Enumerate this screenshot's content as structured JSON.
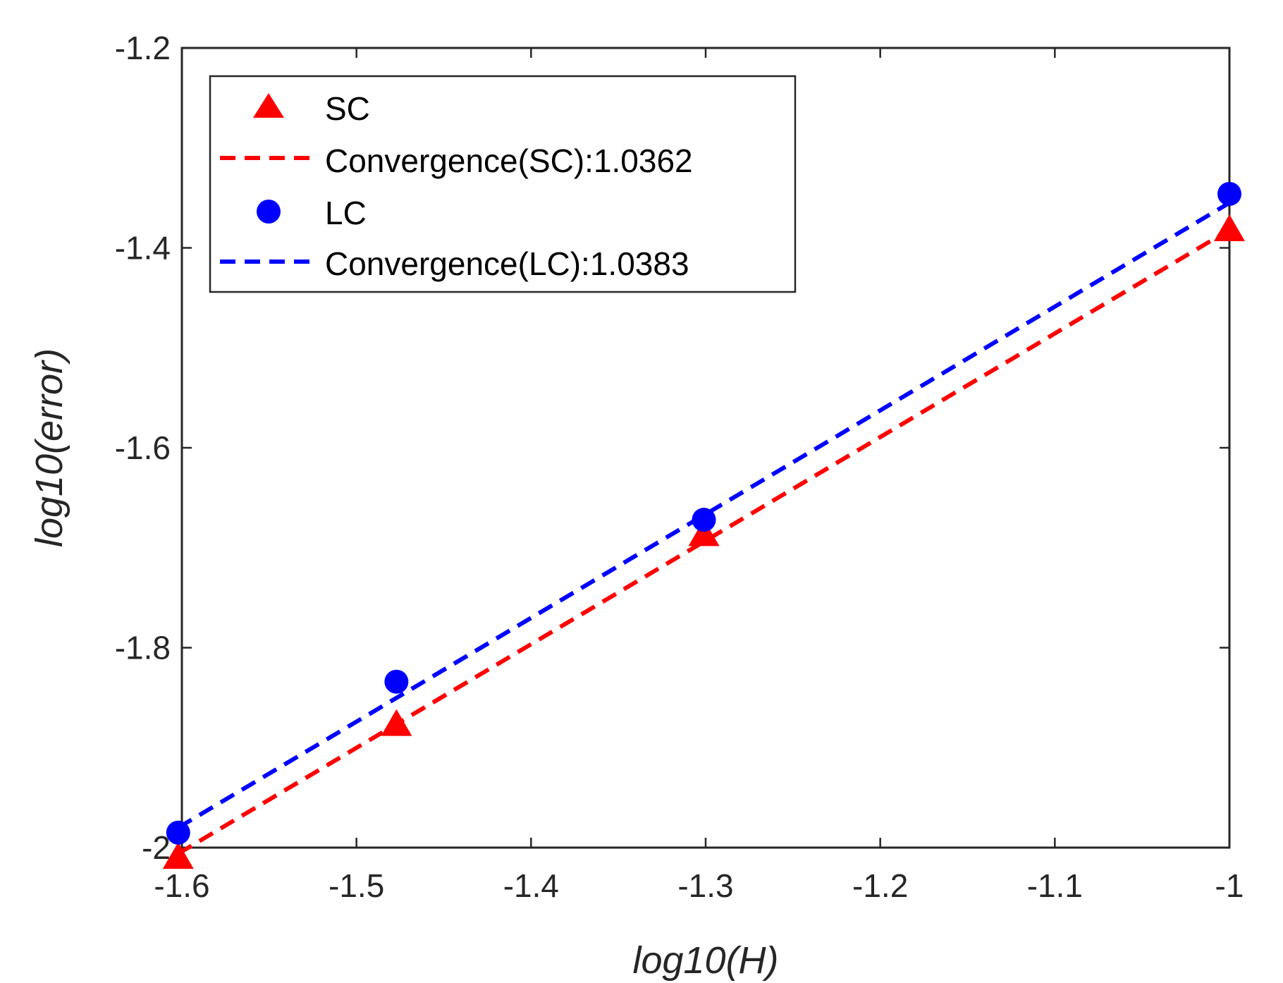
{
  "chart_data": {
    "type": "scatter",
    "xlabel": "log10(H)",
    "ylabel": "log10(error)",
    "xlim": [
      -1.6,
      -1.0
    ],
    "ylim": [
      -2.0,
      -1.2
    ],
    "xticks": [
      -1.6,
      -1.5,
      -1.4,
      -1.3,
      -1.2,
      -1.1,
      -1.0
    ],
    "xtick_labels": [
      "-1.6",
      "-1.5",
      "-1.4",
      "-1.3",
      "-1.2",
      "-1.1",
      "-1"
    ],
    "yticks": [
      -2.0,
      -1.8,
      -1.6,
      -1.4,
      -1.2
    ],
    "ytick_labels": [
      "-2",
      "-1.8",
      "-1.6",
      "-1.4",
      "-1.2"
    ],
    "grid": false,
    "legend_position": "top-left",
    "series": [
      {
        "name": "SC",
        "kind": "markers",
        "marker": "triangle",
        "color": "#ff0000",
        "x": [
          -1.6021,
          -1.4771,
          -1.301,
          -1.0
        ],
        "y": [
          -2.01,
          -1.877,
          -1.687,
          -1.382
        ]
      },
      {
        "name": "Convergence(SC):1.0362",
        "kind": "fit-line",
        "color": "#ff0000",
        "x": [
          -1.6021,
          -1.0
        ],
        "y": [
          -2.006,
          -1.382
        ]
      },
      {
        "name": "LC",
        "kind": "markers",
        "marker": "circle",
        "color": "#0000ff",
        "x": [
          -1.6021,
          -1.4771,
          -1.301,
          -1.0
        ],
        "y": [
          -1.985,
          -1.834,
          -1.672,
          -1.346
        ]
      },
      {
        "name": "Convergence(LC):1.0383",
        "kind": "fit-line",
        "color": "#0000ff",
        "x": [
          -1.6021,
          -1.0
        ],
        "y": [
          -1.98,
          -1.355
        ]
      }
    ]
  }
}
